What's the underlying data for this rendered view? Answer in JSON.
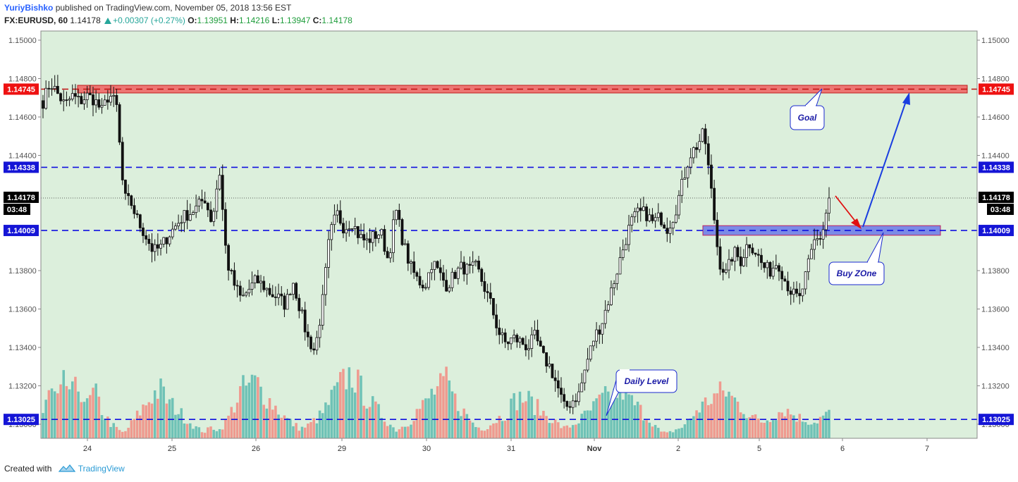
{
  "header": {
    "author": "YuriyBishko",
    "published_text": "published on TradingView.com, November 05, 2018 13:56 EST",
    "symbol": "FX:EURUSD, 60",
    "last": "1.14178",
    "change": "+0.00307 (+0.27%)",
    "o_label": "O:",
    "o_value": "1.13951",
    "h_label": "H:",
    "h_value": "1.14216",
    "l_label": "L:",
    "l_value": "1.13947",
    "c_label": "C:",
    "c_value": "1.14178"
  },
  "footer": {
    "created_with": "Created with",
    "brand": "TradingView"
  },
  "colors": {
    "background": "#dcefdc",
    "up": "#6fc2b6",
    "down": "#ef9a8f",
    "candle": "#111111",
    "resistance_zone": "#f06060",
    "buy_zone": "#6a78e8",
    "level_line": "#1010e0",
    "price_tag": "#000000",
    "arrow_red": "#e01010",
    "arrow_blue": "#1a3ee0"
  },
  "chart_data": {
    "type": "candlestick",
    "symbol": "FX:EURUSD",
    "interval": "60",
    "ylim": [
      1.1292,
      1.1508
    ],
    "y_ticks": [
      "1.15000",
      "1.14800",
      "1.14600",
      "1.14400",
      "1.13800",
      "1.13600",
      "1.13400",
      "1.13200",
      "1.13000"
    ],
    "x_ticks": [
      "24",
      "25",
      "26",
      "29",
      "30",
      "31",
      "Nov",
      "2",
      "5",
      "6",
      "7"
    ],
    "grid": false,
    "levels": [
      {
        "price": 1.14745,
        "label": "1.14745",
        "tag_color": "#ee1111",
        "style": "dashed-red"
      },
      {
        "price": 1.14338,
        "label": "1.14338",
        "tag_color": "#1515d6",
        "style": "dashed-blue"
      },
      {
        "price": 1.14009,
        "label": "1.14009",
        "tag_color": "#1515d6",
        "style": "dashed-blue"
      },
      {
        "price": 1.13025,
        "label": "1.13025",
        "tag_color": "#1515d6",
        "style": "dashed-blue"
      }
    ],
    "current_price": {
      "price": 1.14178,
      "label": "1.14178",
      "countdown": "03:48"
    },
    "zones": [
      {
        "name": "resistance-zone",
        "from_price": 1.14725,
        "to_price": 1.14765,
        "from_x": "23",
        "to_x": "6-7"
      },
      {
        "name": "buy-zone",
        "from_price": 1.13984,
        "to_price": 1.14034,
        "from_x": "2",
        "to_x": "6-7"
      }
    ],
    "annotations": [
      "Goal",
      "Buy ZOne",
      "Daily Level"
    ],
    "close_path": [
      1.1468,
      1.1478,
      1.1472,
      1.1466,
      1.1471,
      1.1468,
      1.1471,
      1.1469,
      1.1463,
      1.1472,
      1.1466,
      1.1418,
      1.1415,
      1.1405,
      1.1398,
      1.139,
      1.1392,
      1.1398,
      1.1403,
      1.1408,
      1.141,
      1.1413,
      1.1418,
      1.1405,
      1.1433,
      1.1385,
      1.1373,
      1.1365,
      1.137,
      1.1375,
      1.1372,
      1.1368,
      1.1366,
      1.1362,
      1.1375,
      1.136,
      1.1345,
      1.1338,
      1.1362,
      1.1398,
      1.141,
      1.1402,
      1.1406,
      1.1398,
      1.1395,
      1.1398,
      1.14,
      1.1385,
      1.1412,
      1.1395,
      1.1382,
      1.1375,
      1.1372,
      1.1385,
      1.1378,
      1.1372,
      1.1378,
      1.1382,
      1.138,
      1.1382,
      1.1372,
      1.1362,
      1.1348,
      1.1342,
      1.1345,
      1.1343,
      1.134,
      1.1346,
      1.1335,
      1.133,
      1.132,
      1.1308,
      1.1312,
      1.1316,
      1.1332,
      1.1345,
      1.1352,
      1.1365,
      1.1378,
      1.1392,
      1.1405,
      1.141,
      1.141,
      1.1405,
      1.1408,
      1.1402,
      1.141,
      1.1425,
      1.144,
      1.1445,
      1.1452,
      1.142,
      1.1385,
      1.1378,
      1.139,
      1.1385,
      1.1395,
      1.139,
      1.1382,
      1.138,
      1.1385,
      1.1375,
      1.1368,
      1.1365,
      1.138,
      1.1395,
      1.1398,
      1.1418
    ],
    "volume_path": [
      30,
      60,
      45,
      70,
      55,
      65,
      40,
      58,
      35,
      20,
      12,
      6,
      18,
      30,
      42,
      55,
      60,
      45,
      38,
      28,
      20,
      12,
      8,
      14,
      10,
      22,
      40,
      60,
      65,
      70,
      55,
      45,
      35,
      25,
      18,
      12,
      15,
      22,
      30,
      45,
      60,
      72,
      80,
      65,
      50,
      40,
      30,
      20,
      10,
      15,
      22,
      35,
      42,
      56,
      62,
      70,
      48,
      36,
      24,
      14,
      12,
      18,
      25,
      30,
      45,
      50,
      48,
      40,
      32,
      26,
      18,
      12,
      16,
      22,
      30,
      38,
      48,
      52,
      55,
      60,
      46,
      38,
      28,
      20,
      8,
      6,
      10,
      14,
      22,
      35,
      42,
      50,
      55,
      58,
      48,
      40,
      30,
      24,
      20,
      26,
      32,
      36,
      30,
      25,
      22,
      20,
      26,
      30
    ]
  }
}
